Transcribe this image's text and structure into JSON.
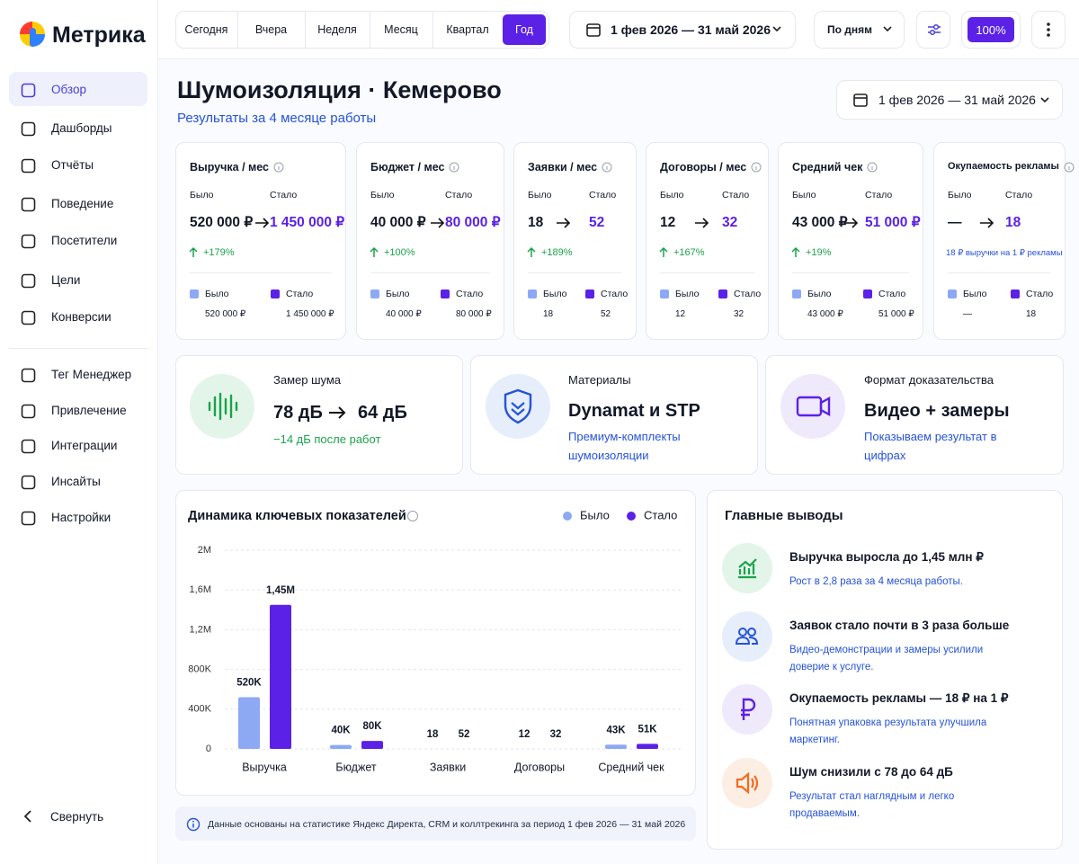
{
  "sidebar": {
    "brand": "Метрика",
    "nav": [
      "Обзор",
      "Дашборды",
      "Отчёты",
      "Поведение",
      "Посетители",
      "Цели",
      "Конверсии"
    ],
    "nav2": [
      "Тег Менеджер",
      "Привлечение",
      "Интеграции",
      "Инсайты",
      "Настройки"
    ],
    "collapse": "Свернуть"
  },
  "toolbar": {
    "periods": [
      "Сегодня",
      "Вчера",
      "Неделя",
      "Месяц",
      "Квартал",
      "Год"
    ],
    "date_range": "1 фев 2026 — 31 май 2026",
    "grouping": "По дням",
    "zoom": "100%"
  },
  "header": {
    "title": "Шумоизоляция · Кемерово",
    "subtitle": "Результаты за 4 месяце работы",
    "date_range": "1 фев 2026 — 31 май 2026"
  },
  "kpis": [
    {
      "title": "Выручка / мес",
      "was_label": "Было",
      "now_label": "Стало",
      "was": "520 000 ₽",
      "now": "1 450 000 ₽",
      "change": "+179%",
      "legend_was": "Было",
      "legend_now": "Стало",
      "legend_was_value": "520 000 ₽",
      "legend_now_value": "1 450 000 ₽"
    },
    {
      "title": "Бюджет / мес",
      "was_label": "Было",
      "now_label": "Стало",
      "was": "40 000 ₽",
      "now": "80 000 ₽",
      "change": "+100%",
      "legend_was": "Было",
      "legend_now": "Стало",
      "legend_was_value": "40 000 ₽",
      "legend_now_value": "80 000 ₽"
    },
    {
      "title": "Заявки / мес",
      "was_label": "Было",
      "now_label": "Стало",
      "was": "18",
      "now": "52",
      "change": "+189%",
      "legend_was": "Было",
      "legend_now": "Стало",
      "legend_was_value": "18",
      "legend_now_value": "52"
    },
    {
      "title": "Договоры / мес",
      "was_label": "Было",
      "now_label": "Стало",
      "was": "12",
      "now": "32",
      "change": "+167%",
      "legend_was": "Было",
      "legend_now": "Стало",
      "legend_was_value": "12",
      "legend_now_value": "32"
    },
    {
      "title": "Средний чек",
      "was_label": "Было",
      "now_label": "Стало",
      "was": "43 000 ₽",
      "now": "51 000 ₽",
      "change": "+19%",
      "legend_was": "Было",
      "legend_now": "Стало",
      "legend_was_value": "43 000 ₽",
      "legend_now_value": "51 000 ₽"
    },
    {
      "title": "Окупаемость рекламы",
      "was_label": "Было",
      "now_label": "Стало",
      "was": "—",
      "now": "18",
      "note": "18 ₽ выручки на 1 ₽ рекламы",
      "legend_was": "Было",
      "legend_now": "Стало",
      "legend_was_value": "—",
      "legend_now_value": "18"
    }
  ],
  "info_cards": [
    {
      "title": "Замер шума",
      "value_was": "78 дБ",
      "value_now": "64 дБ",
      "note": "−14 дБ после работ"
    },
    {
      "title": "Материалы",
      "value": "Dynamat и STP",
      "note": "Премиум-комплекты шумоизоляции"
    },
    {
      "title": "Формат доказательства",
      "value": "Видео + замеры",
      "note": "Показываем результат в цифрах"
    }
  ],
  "chart_data": {
    "type": "bar",
    "title": "Динамика ключевых показателей",
    "categories": [
      "Выручка",
      "Бюджет",
      "Заявки",
      "Договоры",
      "Средний чек"
    ],
    "series": [
      {
        "name": "Было",
        "color": "#8ea9f3",
        "values": [
          520000,
          40000,
          18,
          12,
          43000
        ],
        "value_labels": [
          "520K",
          "40K",
          "18",
          "12",
          "43K"
        ]
      },
      {
        "name": "Стало",
        "color": "#5b21e6",
        "values": [
          1450000,
          80000,
          52,
          32,
          51000
        ],
        "value_labels": [
          "1,45M",
          "80K",
          "52",
          "32",
          "51K"
        ]
      }
    ],
    "ylim": [
      0,
      2000000
    ],
    "yticks": [
      0,
      {
        "value": 400000,
        "label": "400K"
      },
      {
        "value": 800000,
        "label": "800K"
      },
      {
        "value": 1200000,
        "label": "1,2M"
      },
      {
        "value": 1600000,
        "label": "1,6M"
      },
      {
        "value": 2000000,
        "label": "2M"
      }
    ],
    "grid": true,
    "legend": "top-right"
  },
  "conclusions": {
    "title": "Главные выводы",
    "items": [
      {
        "title": "Выручка выросла до 1,45 млн ₽",
        "text": "Рост в 2,8 раза за 4 месяца работы."
      },
      {
        "title": "Заявок стало почти в 3 раза больше",
        "text": "Видео-демонстрации и замеры усилили доверие к услуге."
      },
      {
        "title": "Окупаемость рекламы — 18 ₽ на 1 ₽",
        "text": "Понятная упаковка результата улучшила маркетинг."
      },
      {
        "title": "Шум снизили с 78 до 64 дБ",
        "text": "Результат стал наглядным и легко продаваемым."
      }
    ]
  },
  "footnote": "Данные основаны на статистике Яндекс Директа, CRM и коллтрекинга за период 1 фев 2026 — 31 май 2026"
}
